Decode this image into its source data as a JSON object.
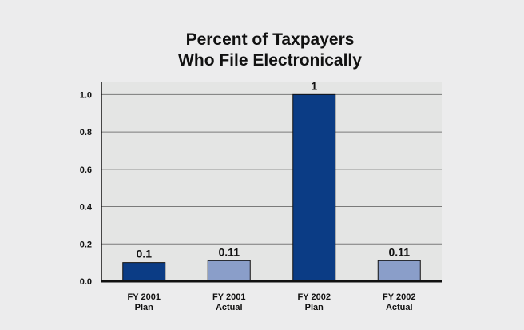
{
  "chart_data": {
    "type": "bar",
    "title": [
      "Percent of Taxpayers",
      "Who File Electronically"
    ],
    "xlabel": "",
    "ylabel": "",
    "categories": [
      [
        "FY 2001",
        "Plan"
      ],
      [
        "FY 2001",
        "Actual"
      ],
      [
        "FY 2002",
        "Plan"
      ],
      [
        "FY 2002",
        "Actual"
      ]
    ],
    "values": [
      0.1,
      0.11,
      1,
      0.11
    ],
    "data_labels": [
      "0.1",
      "0.11",
      "1",
      "0.11"
    ],
    "yticks": [
      0.0,
      0.2,
      0.4,
      0.6,
      0.8,
      1.0
    ],
    "ytick_labels": [
      "0.0",
      "0.2",
      "0.4",
      "0.6",
      "0.8",
      "1.0"
    ],
    "ylim": [
      0,
      1.07
    ],
    "grid": true,
    "legend": "none",
    "colors": {
      "background": "#ececed",
      "plot_background": "#e4e5e4",
      "plan_bar": "#0b3c85",
      "actual_bar": "#8a9ec9",
      "axis": "#111111"
    },
    "bar_colors": [
      "plan_bar",
      "actual_bar",
      "plan_bar",
      "actual_bar"
    ]
  }
}
